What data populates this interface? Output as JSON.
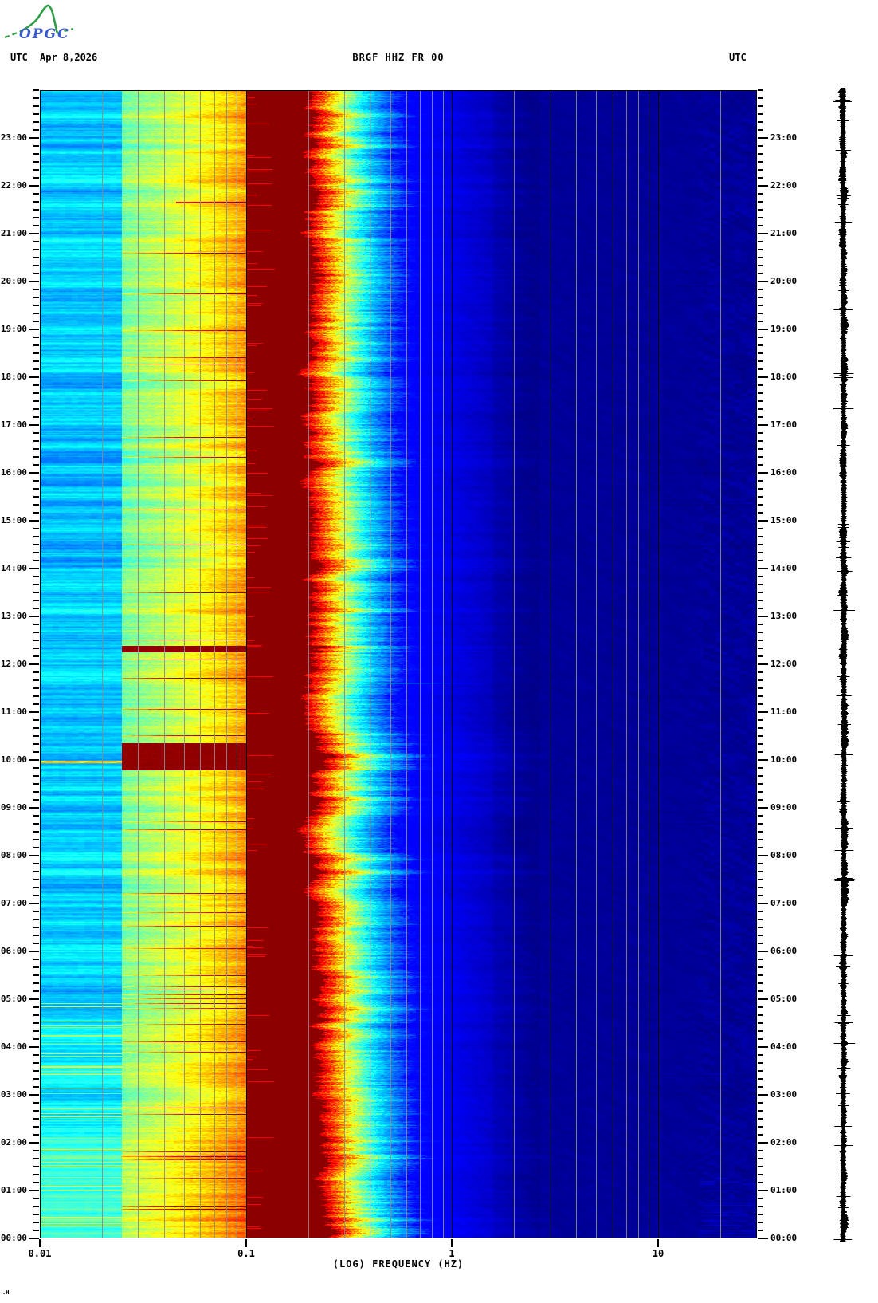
{
  "page": {
    "background": "#ffffff"
  },
  "logo": {
    "org": "OPGC",
    "text_color": "#3b5bd0",
    "sketch_color": "#2f9e44"
  },
  "header": {
    "utc_left": "UTC",
    "date": "Apr 8,2026",
    "title": "BRGF HHZ FR 00",
    "utc_right": "UTC"
  },
  "footer": {
    "mark": ".H"
  },
  "axes": {
    "x_label": "(LOG) FREQUENCY (HZ)",
    "x_tick_labels": [
      {
        "label": "0.01",
        "hz": 0.01
      },
      {
        "label": "0.1",
        "hz": 0.1
      },
      {
        "label": "1",
        "hz": 1
      },
      {
        "label": "10",
        "hz": 10
      }
    ],
    "y_hour_labels": [
      "00:00",
      "01:00",
      "02:00",
      "03:00",
      "04:00",
      "05:00",
      "06:00",
      "07:00",
      "08:00",
      "09:00",
      "10:00",
      "11:00",
      "12:00",
      "13:00",
      "14:00",
      "15:00",
      "16:00",
      "17:00",
      "18:00",
      "19:00",
      "20:00",
      "21:00",
      "22:00",
      "23:00"
    ],
    "minor_tick_minutes": 10,
    "gridlines_gray_hz": [
      0.02,
      0.03,
      0.04,
      0.05,
      0.06,
      0.07,
      0.08,
      0.09,
      0.2,
      0.3,
      0.4,
      0.5,
      0.6,
      0.7,
      0.8,
      0.9,
      2,
      3,
      4,
      5,
      6,
      7,
      8,
      9,
      20
    ],
    "gridlines_black_hz": [
      0.1,
      1,
      10
    ]
  },
  "chart_data": {
    "type": "heatmap",
    "title": "BRGF HHZ FR 00",
    "date": "Apr 8,2026",
    "timezone": "UTC",
    "xlabel": "(LOG) FREQUENCY (HZ)",
    "x_scale": "log",
    "x_range_hz": [
      0.01,
      30
    ],
    "y_range_hours_utc": [
      0,
      24
    ],
    "y_direction": "00:00 at bottom, 24:00 at top",
    "colormap": "jet",
    "seed": 20260408,
    "bands": [
      {
        "hz": [
          0.01,
          0.025
        ],
        "jet_v": [
          0.24,
          0.48
        ],
        "desc": "horizontally striped blue/cyan band, greener toward 00:00-06:00"
      },
      {
        "hz": [
          0.025,
          0.1
        ],
        "jet_v": [
          0.45,
          0.78
        ],
        "desc": "cyan-green rising to yellow/orange with frequent orange-red streak rows, hottest sliver just below 0.1 Hz"
      },
      {
        "hz": [
          0.1,
          0.21
        ],
        "jet_v": [
          1.0,
          1.0
        ],
        "desc": "saturated dark-red (maroon) microseism band with thin bright-red intrusions at its left edge"
      },
      {
        "hz": [
          0.21,
          0.35
        ],
        "jet_v": [
          0.6,
          0.95
        ],
        "desc": "ragged red-orange-yellow right edge of microseism peak"
      },
      {
        "hz": [
          0.35,
          0.65
        ],
        "jet_v": [
          0.13,
          0.4
        ],
        "desc": "green-cyan-royal-blue falloff"
      },
      {
        "hz": [
          0.65,
          30
        ],
        "jet_v": [
          0.0,
          0.13
        ],
        "desc": "dark navy background with faint mottling, slightly darker 1-1.6 Hz and patchy beyond 10 Hz, lighter streaks bottom-right"
      }
    ],
    "events": [
      {
        "kind": "red_line_all_bands",
        "utc": "09:58",
        "hours": 9.97,
        "strength": 0.8
      },
      {
        "kind": "band2_saturation",
        "utc_start": "09:48",
        "utc_end": "10:21",
        "hours_start": 9.8,
        "hours_end": 10.35
      },
      {
        "kind": "band2_saturation",
        "utc_start": "12:16",
        "utc_end": "12:23",
        "hours_start": 12.27,
        "hours_end": 12.38
      },
      {
        "kind": "cyan_streak",
        "utc": "11:37",
        "hours": 11.62,
        "to_hz": 1.5,
        "strength": 0.36
      },
      {
        "kind": "cyan_streak",
        "utc": "09:50",
        "hours": 9.83,
        "to_hz": 0.9,
        "strength": 0.3
      },
      {
        "kind": "band2_orange_line",
        "utc": "21:40",
        "hours": 21.67,
        "strength": 0.3
      }
    ],
    "side_trace": {
      "description": "vertical black seismogram amplitude trace at right margin",
      "color": "#000000"
    }
  },
  "colors": {
    "grid_gray": "#8a8a8a",
    "grid_black": "#000000",
    "maroon": "#8b0000",
    "navy": "#000090",
    "tick": "#000000",
    "text": "#000000"
  }
}
